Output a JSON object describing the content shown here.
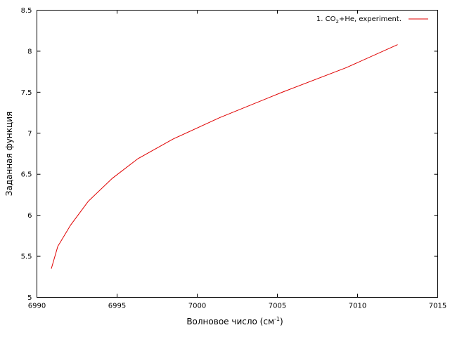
{
  "chart_data": {
    "type": "line",
    "title": "",
    "xlabel": "Волновое число (см",
    "xlabel_sup": "-1",
    "xlabel_end": ")",
    "ylabel": "Заданная функция",
    "xlim": [
      6990,
      7015
    ],
    "ylim": [
      5,
      8.5
    ],
    "xticks": [
      6990,
      6995,
      7000,
      7005,
      7010,
      7015
    ],
    "yticks": [
      5,
      5.5,
      6,
      6.5,
      7,
      7.5,
      8,
      8.5
    ],
    "xtick_labels": [
      "6990",
      "6995",
      "7000",
      "7005",
      "7010",
      "7015"
    ],
    "ytick_labels": [
      "5",
      "5.5",
      "6",
      "6.5",
      "7",
      "7.5",
      "8",
      "8.5"
    ],
    "grid": false,
    "legend_position": "top-right",
    "series": [
      {
        "name_prefix": "1. CO",
        "name_sub": "2",
        "name_suffix": "+He, experiment.",
        "color": "#e00000",
        "x": [
          6990.9,
          6991.3,
          6992.1,
          6993.2,
          6994.7,
          6996.3,
          6998.5,
          7001.4,
          7005.3,
          7009.3,
          7012.5
        ],
        "y": [
          5.35,
          5.62,
          5.88,
          6.17,
          6.45,
          6.69,
          6.93,
          7.19,
          7.5,
          7.8,
          8.08
        ]
      }
    ]
  }
}
